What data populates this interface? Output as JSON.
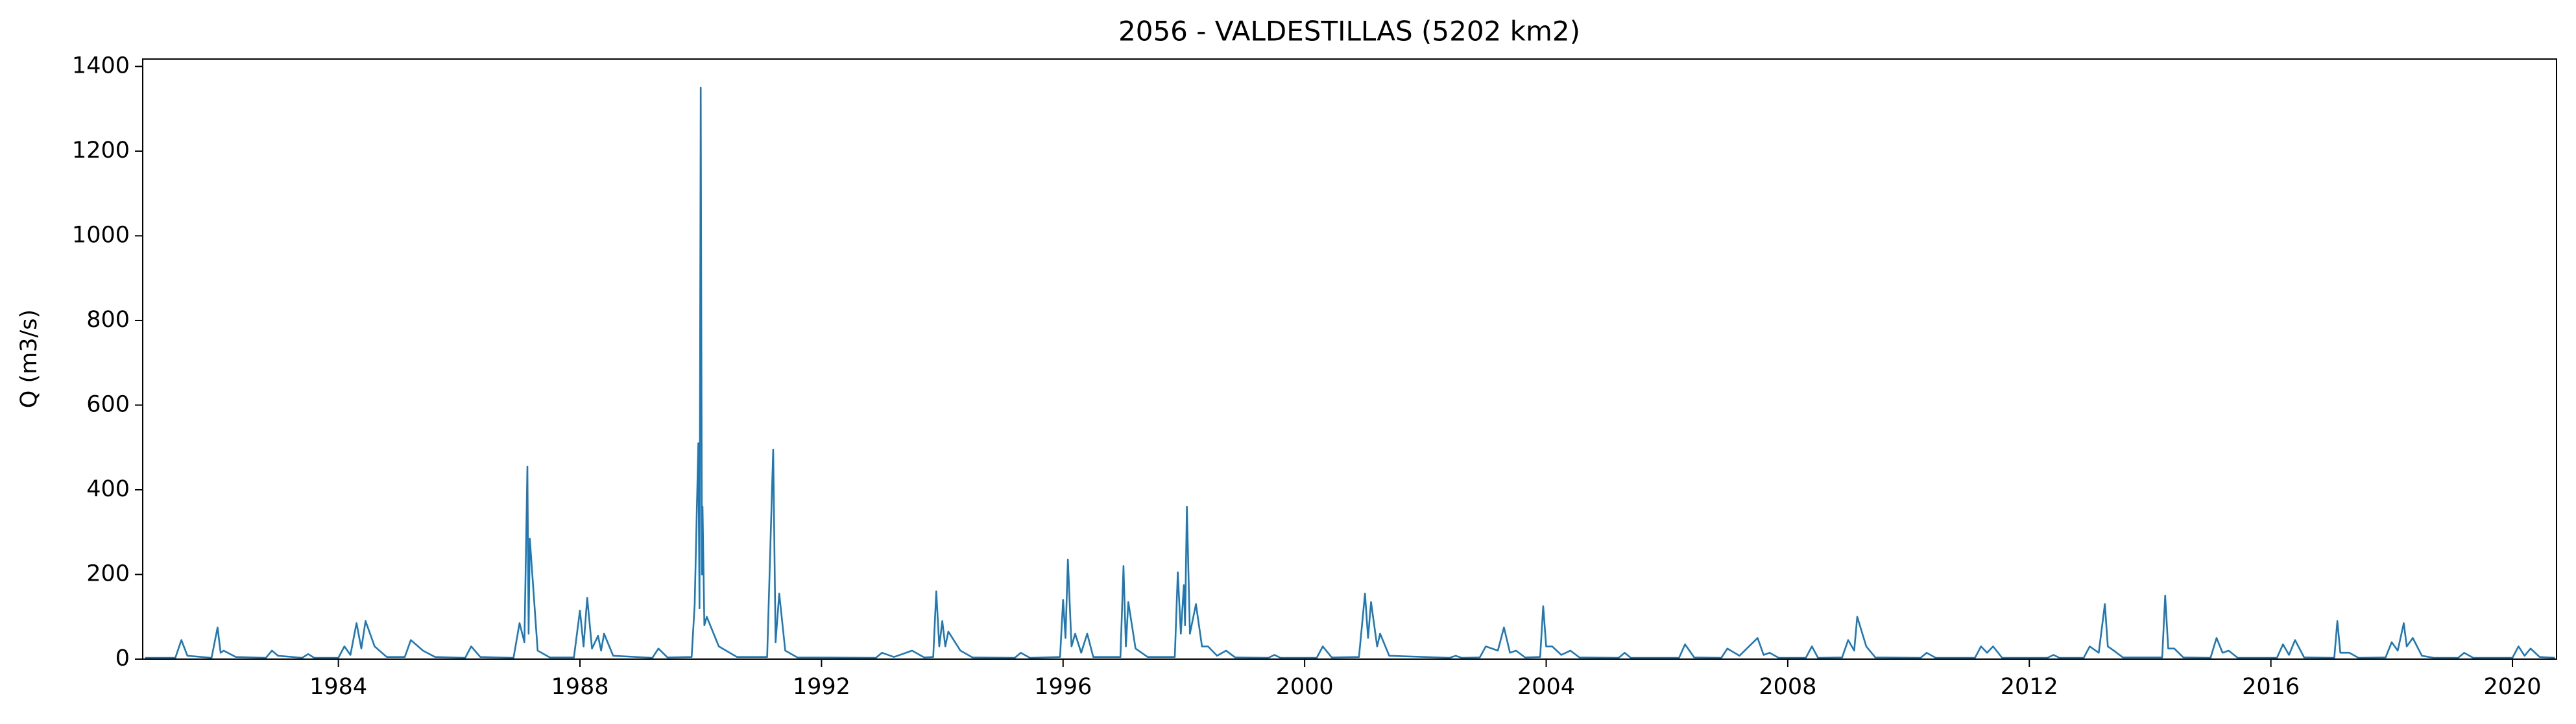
{
  "chart_data": {
    "type": "line",
    "title": "2056 - VALDESTILLAS (5202 km2)",
    "ylabel": "Q (m3/s)",
    "series": [
      {
        "color": "#1f77b4",
        "x": [
          1980.8,
          1981.3,
          1981.4,
          1981.5,
          1981.9,
          1982.0,
          1982.05,
          1982.1,
          1982.3,
          1982.8,
          1982.9,
          1983.0,
          1983.4,
          1983.5,
          1983.6,
          1984.0,
          1984.1,
          1984.2,
          1984.3,
          1984.38,
          1984.45,
          1984.6,
          1984.8,
          1985.1,
          1985.2,
          1985.4,
          1985.6,
          1986.1,
          1986.2,
          1986.35,
          1986.9,
          1987.0,
          1987.08,
          1987.13,
          1987.15,
          1987.17,
          1987.3,
          1987.5,
          1987.9,
          1988.0,
          1988.06,
          1988.12,
          1988.2,
          1988.3,
          1988.35,
          1988.4,
          1988.55,
          1989.2,
          1989.3,
          1989.45,
          1989.85,
          1989.9,
          1989.96,
          1989.98,
          1990.0,
          1990.02,
          1990.03,
          1990.06,
          1990.1,
          1990.3,
          1990.6,
          1991.1,
          1991.2,
          1991.24,
          1991.3,
          1991.4,
          1991.6,
          1992.9,
          1993.0,
          1993.2,
          1993.5,
          1993.7,
          1993.85,
          1993.9,
          1993.95,
          1994.0,
          1994.05,
          1994.1,
          1994.3,
          1994.5,
          1995.2,
          1995.3,
          1995.45,
          1995.95,
          1996.0,
          1996.04,
          1996.08,
          1996.14,
          1996.2,
          1996.3,
          1996.4,
          1996.5,
          1996.95,
          1997.0,
          1997.04,
          1997.08,
          1997.2,
          1997.4,
          1997.85,
          1997.9,
          1997.95,
          1998.0,
          1998.02,
          1998.05,
          1998.1,
          1998.2,
          1998.3,
          1998.4,
          1998.55,
          1998.7,
          1998.85,
          1999.4,
          1999.5,
          1999.6,
          2000.2,
          2000.3,
          2000.45,
          2000.9,
          2001.0,
          2001.05,
          2001.1,
          2001.2,
          2001.25,
          2001.4,
          2002.4,
          2002.5,
          2002.6,
          2002.9,
          2003.0,
          2003.2,
          2003.3,
          2003.4,
          2003.5,
          2003.65,
          2003.9,
          2003.95,
          2004.0,
          2004.1,
          2004.25,
          2004.4,
          2004.55,
          2005.2,
          2005.3,
          2005.4,
          2006.2,
          2006.3,
          2006.45,
          2006.9,
          2007.0,
          2007.2,
          2007.5,
          2007.6,
          2007.7,
          2007.85,
          2008.3,
          2008.4,
          2008.5,
          2008.9,
          2009.0,
          2009.1,
          2009.15,
          2009.3,
          2009.45,
          2010.2,
          2010.3,
          2010.45,
          2011.1,
          2011.2,
          2011.3,
          2011.4,
          2011.55,
          2012.3,
          2012.4,
          2012.5,
          2012.9,
          2013.0,
          2013.15,
          2013.25,
          2013.3,
          2013.4,
          2013.55,
          2014.2,
          2014.25,
          2014.3,
          2014.4,
          2014.55,
          2015.0,
          2015.1,
          2015.2,
          2015.3,
          2015.45,
          2016.1,
          2016.2,
          2016.3,
          2016.4,
          2016.55,
          2017.05,
          2017.1,
          2017.15,
          2017.3,
          2017.45,
          2017.9,
          2018.0,
          2018.1,
          2018.2,
          2018.25,
          2018.35,
          2018.5,
          2018.7,
          2019.1,
          2019.2,
          2019.35,
          2020.0,
          2020.1,
          2020.2,
          2020.3,
          2020.45,
          2020.7
        ],
        "values": [
          3,
          3,
          45,
          8,
          3,
          75,
          15,
          20,
          5,
          3,
          20,
          8,
          3,
          12,
          3,
          3,
          30,
          10,
          85,
          25,
          90,
          30,
          5,
          5,
          45,
          20,
          5,
          3,
          30,
          5,
          3,
          85,
          40,
          455,
          60,
          285,
          20,
          4,
          4,
          115,
          30,
          145,
          25,
          55,
          20,
          60,
          8,
          3,
          25,
          4,
          5,
          130,
          510,
          120,
          1350,
          200,
          360,
          80,
          100,
          30,
          5,
          5,
          495,
          40,
          155,
          20,
          4,
          3,
          15,
          5,
          20,
          4,
          5,
          160,
          30,
          90,
          30,
          65,
          20,
          4,
          3,
          15,
          3,
          5,
          140,
          50,
          235,
          30,
          60,
          15,
          60,
          5,
          5,
          220,
          30,
          135,
          25,
          5,
          5,
          205,
          60,
          175,
          80,
          360,
          60,
          130,
          30,
          30,
          8,
          20,
          4,
          3,
          10,
          3,
          3,
          30,
          4,
          5,
          155,
          50,
          135,
          30,
          60,
          8,
          3,
          8,
          3,
          4,
          30,
          20,
          75,
          15,
          20,
          4,
          5,
          125,
          30,
          30,
          10,
          20,
          4,
          3,
          15,
          3,
          3,
          35,
          4,
          3,
          25,
          8,
          50,
          10,
          15,
          3,
          3,
          30,
          3,
          4,
          45,
          20,
          100,
          30,
          4,
          3,
          15,
          3,
          3,
          30,
          15,
          30,
          3,
          3,
          10,
          3,
          3,
          30,
          15,
          130,
          30,
          20,
          4,
          4,
          150,
          25,
          25,
          4,
          3,
          50,
          15,
          20,
          3,
          3,
          35,
          10,
          45,
          4,
          3,
          90,
          15,
          15,
          3,
          4,
          40,
          20,
          85,
          30,
          50,
          8,
          3,
          3,
          15,
          3,
          3,
          30,
          8,
          25,
          5,
          3
        ]
      }
    ],
    "xlim": [
      1980.76,
      2020.73
    ],
    "xticks": [
      1984,
      1988,
      1992,
      1996,
      2000,
      2004,
      2008,
      2012,
      2016,
      2020
    ],
    "ylim": [
      0,
      1417.5
    ],
    "yticks": [
      0,
      200,
      400,
      600,
      800,
      1000,
      1200,
      1400
    ],
    "grid": false
  }
}
